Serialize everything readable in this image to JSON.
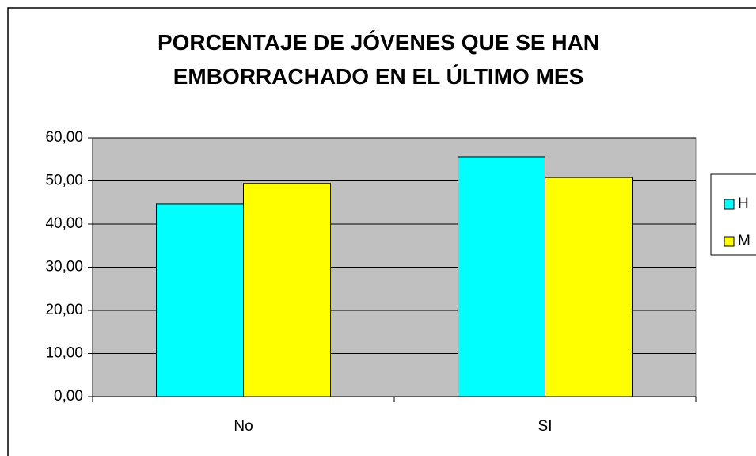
{
  "chart_data": {
    "type": "bar",
    "title": "PORCENTAJE DE JÓVENES QUE SE HAN EMBORRACHADO EN EL ÚLTIMO MES",
    "categories": [
      "No",
      "SI"
    ],
    "series": [
      {
        "name": "H",
        "color": "#00ffff",
        "values": [
          44.6,
          55.6
        ]
      },
      {
        "name": "M",
        "color": "#ffff00",
        "values": [
          49.4,
          50.8
        ]
      }
    ],
    "ylim": [
      0,
      60
    ],
    "yticks": [
      {
        "value": 0,
        "label": "0,00"
      },
      {
        "value": 10,
        "label": "10,00"
      },
      {
        "value": 20,
        "label": "20,00"
      },
      {
        "value": 30,
        "label": "30,00"
      },
      {
        "value": 40,
        "label": "40,00"
      },
      {
        "value": 50,
        "label": "50,00"
      },
      {
        "value": 60,
        "label": "60,00"
      }
    ],
    "grid": true,
    "legend": "right"
  }
}
